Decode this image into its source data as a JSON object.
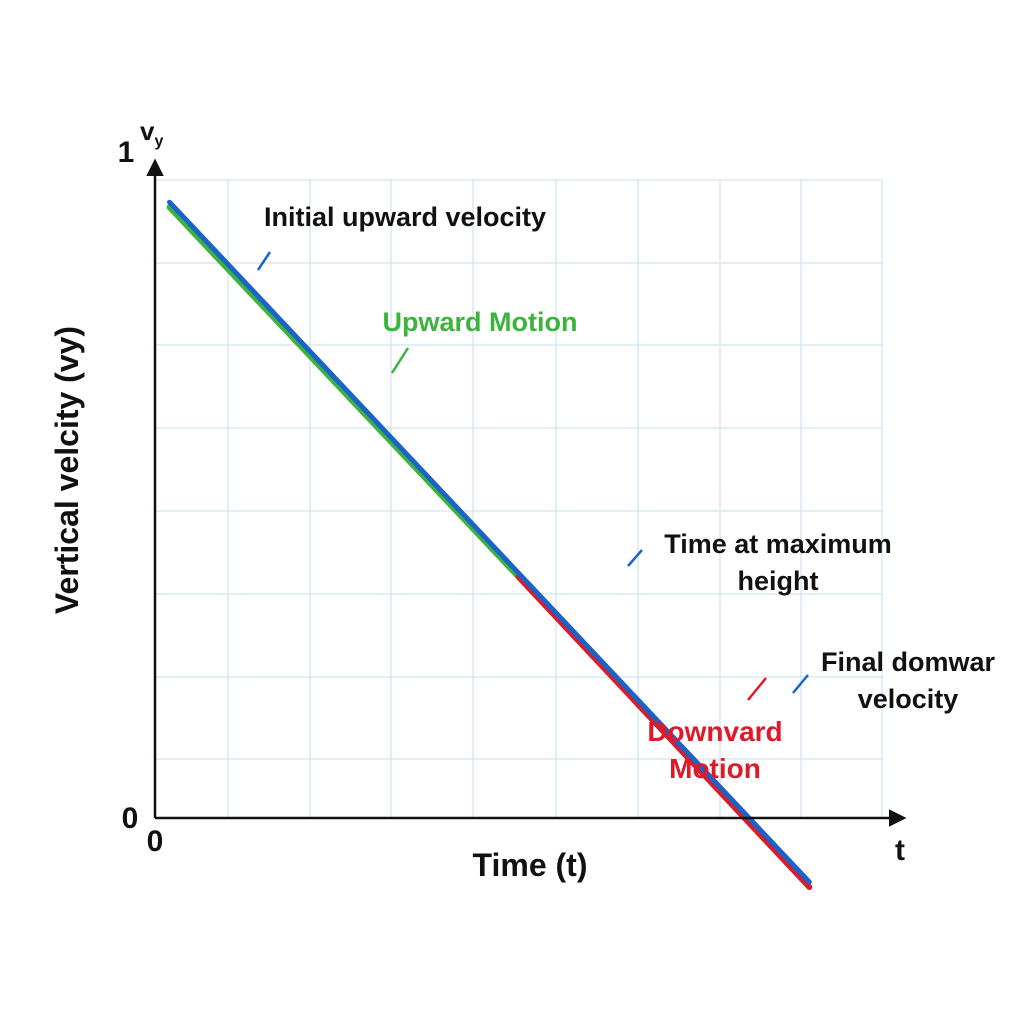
{
  "chart_data": {
    "type": "line",
    "xlabel": "Time (t)",
    "ylabel": "Vertical velcity (vy)",
    "x_axis_end_label": "t",
    "y_axis_end_label_main": "v",
    "y_axis_end_label_sub": "y",
    "x_origin_label": "0",
    "y_origin_label": "0",
    "y_top_label": "1",
    "grid": true,
    "series": [
      {
        "name": "Upward Motion",
        "color": "#3cb33c",
        "points": [
          [
            0.02,
            0.93
          ],
          [
            0.5,
            0.37
          ]
        ]
      },
      {
        "name": "Downvard Motion",
        "color": "#dd1a2a",
        "points": [
          [
            0.5,
            0.37
          ],
          [
            0.9,
            -0.1
          ]
        ]
      },
      {
        "color": "#1a63c8",
        "points": [
          [
            0.02,
            0.93
          ],
          [
            0.9,
            -0.1
          ]
        ]
      }
    ],
    "annotations": [
      {
        "text": [
          "Initial upward velocity"
        ],
        "color": "#111111",
        "at": [
          0.13,
          0.76
        ]
      },
      {
        "text": [
          "Upward Motion"
        ],
        "color": "#3cb33c",
        "at": [
          0.29,
          0.58
        ]
      },
      {
        "text": [
          "Time at maximum",
          "height"
        ],
        "color": "#111111",
        "at": [
          0.59,
          0.16
        ]
      },
      {
        "text": [
          "Final domwar",
          "velocity"
        ],
        "color": "#111111",
        "at": [
          0.8,
          0.0
        ]
      },
      {
        "text": [
          "Downvard",
          "Motion"
        ],
        "color": "#dd1a2a",
        "at": [
          0.78,
          0.065
        ]
      }
    ]
  }
}
